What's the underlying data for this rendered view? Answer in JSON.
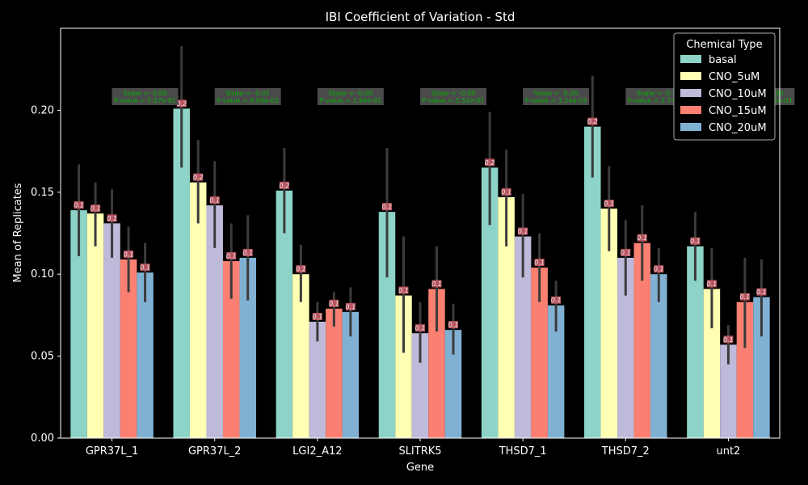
{
  "chart_data": {
    "type": "bar",
    "title": "IBI Coefficient of Variation - Std",
    "xlabel": "Gene",
    "ylabel": "Mean of Replicates",
    "ylim": [
      0,
      0.25
    ],
    "yticks": [
      "0.00",
      "0.05",
      "0.10",
      "0.15",
      "0.20"
    ],
    "categories": [
      "GPR37L_1",
      "GPR37L_2",
      "LGI2_A12",
      "SLITRK5",
      "THSD7_1",
      "THSD7_2",
      "unt2"
    ],
    "legend": {
      "title": "Chemical Type",
      "placement": "top-right"
    },
    "series": [
      {
        "name": "basal",
        "color": "#8dd3c7",
        "values": [
          0.139,
          0.201,
          0.151,
          0.138,
          0.165,
          0.19,
          0.117
        ],
        "err_low": [
          0.111,
          0.165,
          0.125,
          0.098,
          0.13,
          0.159,
          0.096
        ],
        "err_high": [
          0.167,
          0.239,
          0.177,
          0.177,
          0.199,
          0.221,
          0.138
        ]
      },
      {
        "name": "CNO_5uM",
        "color": "#ffffb3",
        "values": [
          0.137,
          0.156,
          0.1,
          0.087,
          0.147,
          0.14,
          0.091
        ],
        "err_low": [
          0.117,
          0.131,
          0.083,
          0.052,
          0.117,
          0.114,
          0.067
        ],
        "err_high": [
          0.156,
          0.182,
          0.118,
          0.123,
          0.176,
          0.166,
          0.116
        ]
      },
      {
        "name": "CNO_10uM",
        "color": "#bebada",
        "values": [
          0.131,
          0.142,
          0.071,
          0.064,
          0.123,
          0.11,
          0.057
        ],
        "err_low": [
          0.11,
          0.116,
          0.059,
          0.046,
          0.098,
          0.087,
          0.045
        ],
        "err_high": [
          0.152,
          0.169,
          0.083,
          0.083,
          0.149,
          0.133,
          0.069
        ]
      },
      {
        "name": "CNO_15uM",
        "color": "#fb8072",
        "values": [
          0.109,
          0.108,
          0.079,
          0.091,
          0.104,
          0.119,
          0.083
        ],
        "err_low": [
          0.089,
          0.085,
          0.068,
          0.065,
          0.083,
          0.096,
          0.055
        ],
        "err_high": [
          0.129,
          0.131,
          0.089,
          0.117,
          0.125,
          0.142,
          0.11
        ]
      },
      {
        "name": "CNO_20uM",
        "color": "#80b1d3",
        "values": [
          0.101,
          0.11,
          0.077,
          0.066,
          0.081,
          0.1,
          0.086
        ],
        "err_low": [
          0.083,
          0.084,
          0.062,
          0.051,
          0.065,
          0.083,
          0.062
        ],
        "err_high": [
          0.119,
          0.136,
          0.092,
          0.082,
          0.096,
          0.116,
          0.109
        ]
      }
    ],
    "bar_labels": [
      "0.1",
      "0.2"
    ],
    "annotations": [
      {
        "line1": "Slope = -0.00",
        "line2": "P-value = 5.57e-01"
      },
      {
        "line1": "Slope = -0.01",
        "line2": "P-value = 6.09e-02"
      },
      {
        "line1": "Slope = -0.00",
        "line2": "P-value = 1.94e-01"
      },
      {
        "line1": "Slope = -0.00",
        "line2": "P-value = 5.51e-01"
      },
      {
        "line1": "Slope = -0.00",
        "line2": "P-value = 3.14e-01"
      },
      {
        "line1": "Slope = -0.00",
        "line2": "P-value = 2.74e-01"
      },
      {
        "line1": "Slope = -0.00",
        "line2": "P-value = 4.11e-01"
      }
    ],
    "grid": false
  }
}
